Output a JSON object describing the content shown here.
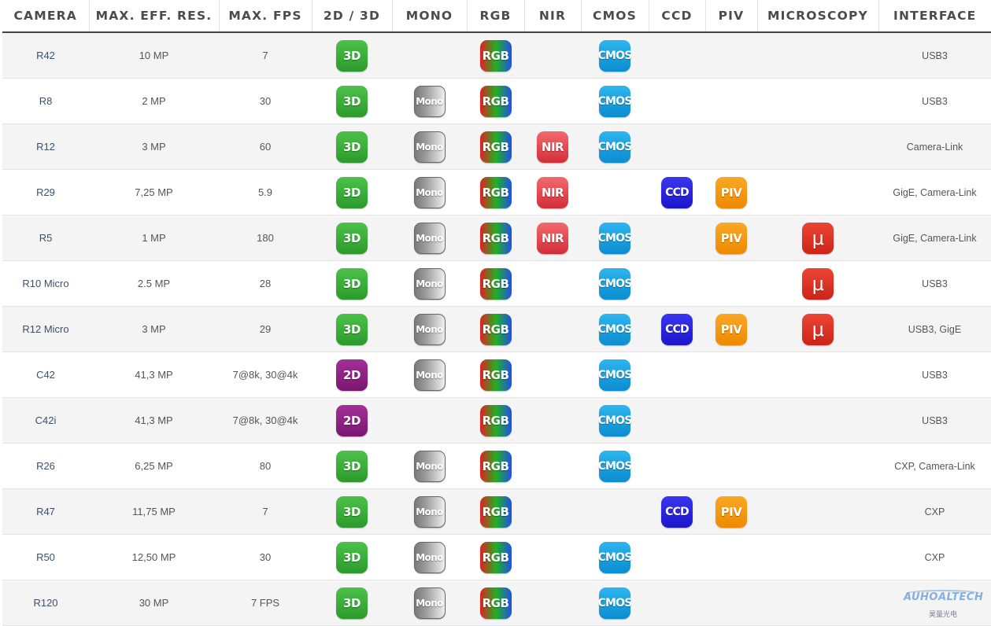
{
  "headers": {
    "camera": "CAMERA",
    "resolution": "MAX. EFF. RES.",
    "fps": "MAX. FPS",
    "dim": "2D / 3D",
    "mono": "MONO",
    "rgb": "RGB",
    "nir": "NIR",
    "cmos": "CMOS",
    "ccd": "CCD",
    "piv": "PIV",
    "microscopy": "MICROSCOPY",
    "interface": "INTERFACE"
  },
  "badge_labels": {
    "3d": "3D",
    "2d": "2D",
    "mono": "Mono",
    "rgb": "RGB",
    "nir": "NIR",
    "cmos": "CMOS",
    "ccd": "CCD",
    "piv": "PIV",
    "micro": "μ"
  },
  "rows": [
    {
      "camera": "R42",
      "resolution": "10 MP",
      "fps": "7",
      "dim": "3d",
      "mono": false,
      "rgb": true,
      "nir": false,
      "cmos": true,
      "ccd": false,
      "piv": false,
      "micro": false,
      "interface": "USB3"
    },
    {
      "camera": "R8",
      "resolution": "2 MP",
      "fps": "30",
      "dim": "3d",
      "mono": true,
      "rgb": true,
      "nir": false,
      "cmos": true,
      "ccd": false,
      "piv": false,
      "micro": false,
      "interface": "USB3"
    },
    {
      "camera": "R12",
      "resolution": "3 MP",
      "fps": "60",
      "dim": "3d",
      "mono": true,
      "rgb": true,
      "nir": true,
      "cmos": true,
      "ccd": false,
      "piv": false,
      "micro": false,
      "interface": "Camera-Link"
    },
    {
      "camera": "R29",
      "resolution": "7,25 MP",
      "fps": "5.9",
      "dim": "3d",
      "mono": true,
      "rgb": true,
      "nir": true,
      "cmos": false,
      "ccd": true,
      "piv": true,
      "micro": false,
      "interface": "GigE, Camera-Link"
    },
    {
      "camera": "R5",
      "resolution": "1 MP",
      "fps": "180",
      "dim": "3d",
      "mono": true,
      "rgb": true,
      "nir": true,
      "cmos": true,
      "ccd": false,
      "piv": true,
      "micro": true,
      "interface": "GigE, Camera-Link"
    },
    {
      "camera": "R10 Micro",
      "resolution": "2.5 MP",
      "fps": "28",
      "dim": "3d",
      "mono": true,
      "rgb": true,
      "nir": false,
      "cmos": true,
      "ccd": false,
      "piv": false,
      "micro": true,
      "interface": "USB3"
    },
    {
      "camera": "R12 Micro",
      "resolution": "3 MP",
      "fps": "29",
      "dim": "3d",
      "mono": true,
      "rgb": true,
      "nir": false,
      "cmos": true,
      "ccd": true,
      "piv": true,
      "micro": true,
      "interface": "USB3, GigE"
    },
    {
      "camera": "C42",
      "resolution": "41,3 MP",
      "fps": "7@8k, 30@4k",
      "dim": "2d",
      "mono": true,
      "rgb": true,
      "nir": false,
      "cmos": true,
      "ccd": false,
      "piv": false,
      "micro": false,
      "interface": "USB3"
    },
    {
      "camera": "C42i",
      "resolution": "41,3 MP",
      "fps": "7@8k, 30@4k",
      "dim": "2d",
      "mono": false,
      "rgb": true,
      "nir": false,
      "cmos": true,
      "ccd": false,
      "piv": false,
      "micro": false,
      "interface": "USB3"
    },
    {
      "camera": "R26",
      "resolution": "6,25 MP",
      "fps": "80",
      "dim": "3d",
      "mono": true,
      "rgb": true,
      "nir": false,
      "cmos": true,
      "ccd": false,
      "piv": false,
      "micro": false,
      "interface": "CXP, Camera-Link"
    },
    {
      "camera": "R47",
      "resolution": "11,75 MP",
      "fps": "7",
      "dim": "3d",
      "mono": true,
      "rgb": true,
      "nir": false,
      "cmos": false,
      "ccd": true,
      "piv": true,
      "micro": false,
      "interface": "CXP"
    },
    {
      "camera": "R50",
      "resolution": "12,50 MP",
      "fps": "30",
      "dim": "3d",
      "mono": true,
      "rgb": true,
      "nir": false,
      "cmos": true,
      "ccd": false,
      "piv": false,
      "micro": false,
      "interface": "CXP"
    },
    {
      "camera": "R120",
      "resolution": "30 MP",
      "fps": "7 FPS",
      "dim": "3d",
      "mono": true,
      "rgb": true,
      "nir": false,
      "cmos": true,
      "ccd": false,
      "piv": false,
      "micro": false,
      "interface": ""
    }
  ],
  "watermark": {
    "brand": "AUHOALTECH",
    "subtitle": "昊量光电"
  }
}
